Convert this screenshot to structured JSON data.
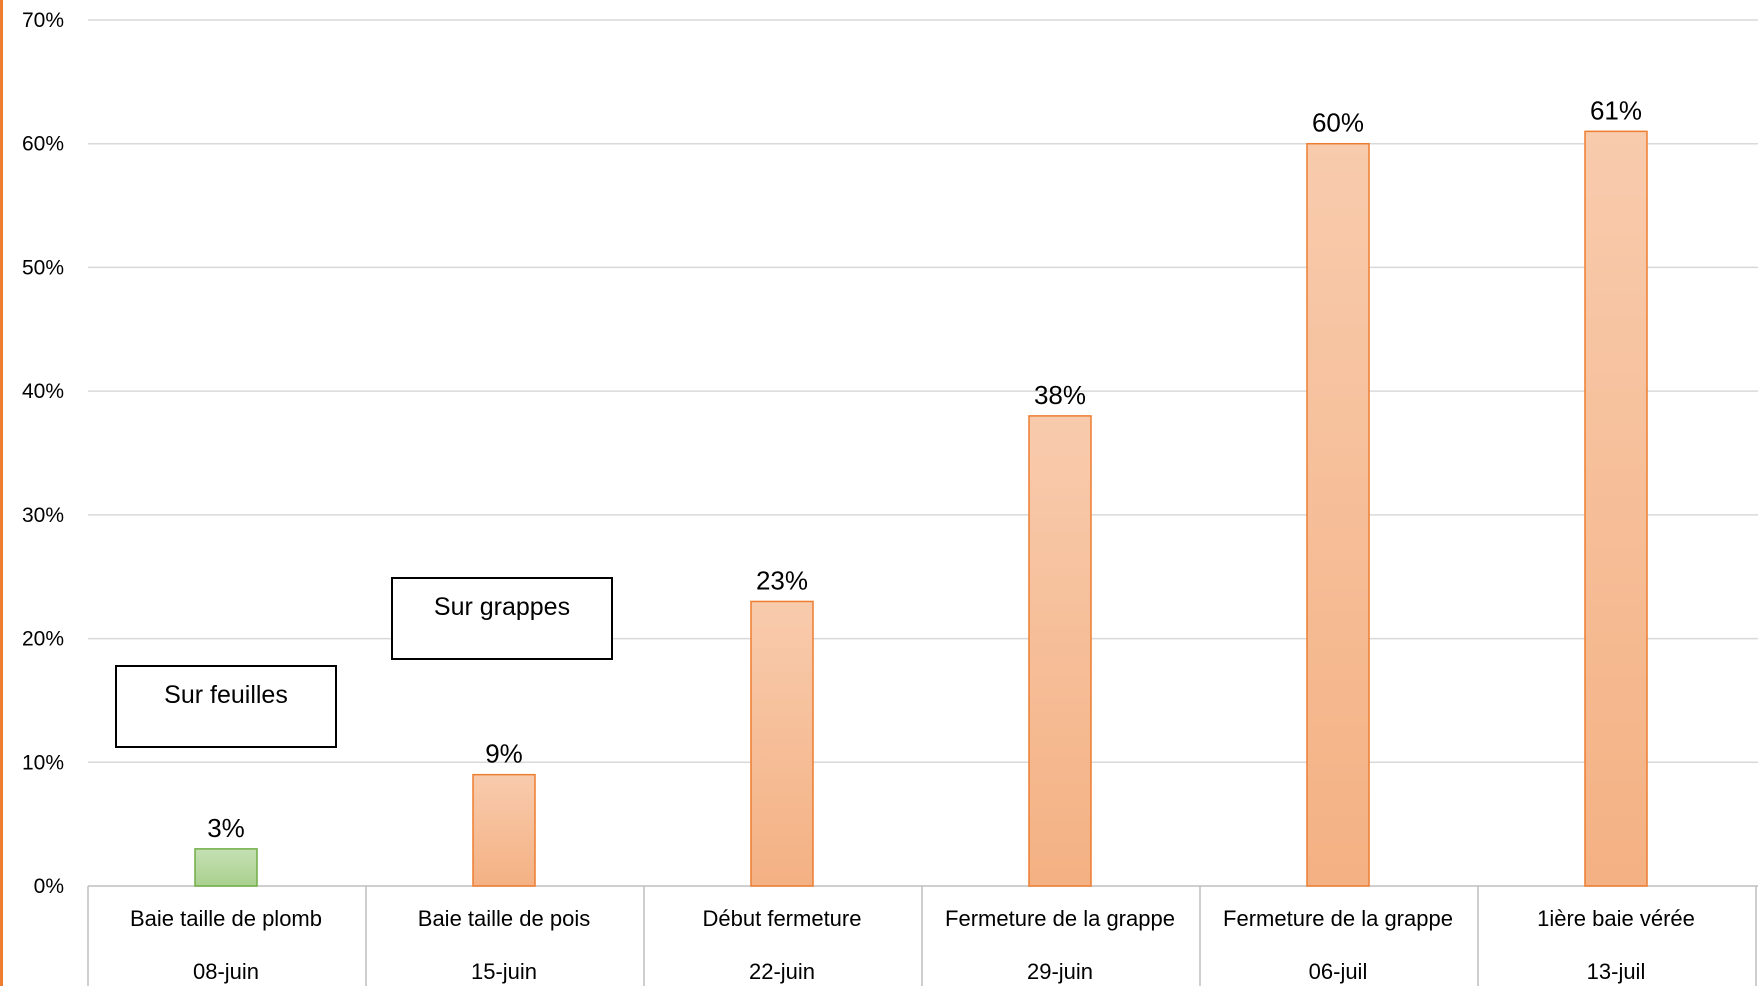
{
  "chart_data": {
    "type": "bar",
    "categories": [
      [
        "Baie taille de plomb",
        "08-juin"
      ],
      [
        "Baie taille de pois",
        "15-juin"
      ],
      [
        "Début fermeture",
        "22-juin"
      ],
      [
        "Fermeture de la grappe",
        "29-juin"
      ],
      [
        "Fermeture de la grappe",
        "06-juil"
      ],
      [
        "1ière baie vérée",
        "13-juil"
      ]
    ],
    "values": [
      3,
      9,
      23,
      38,
      60,
      61
    ],
    "data_labels": [
      "3%",
      "9%",
      "23%",
      "38%",
      "60%",
      "61%"
    ],
    "bar_colors": [
      "#A9D18E",
      "#F4B183",
      "#F4B183",
      "#F4B183",
      "#F4B183",
      "#F4B183"
    ],
    "bar_gradient_top": [
      "#C5E0B4",
      "#F8CBAD",
      "#F8CBAD",
      "#F8CBAD",
      "#F8CBAD",
      "#F8CBAD"
    ],
    "bar_edge_colors": [
      "#70AD47",
      "#ED7D31",
      "#ED7D31",
      "#ED7D31",
      "#ED7D31",
      "#ED7D31"
    ],
    "ylim": [
      0,
      70
    ],
    "yticks": [
      "0%",
      "10%",
      "20%",
      "30%",
      "40%",
      "50%",
      "60%",
      "70%"
    ],
    "grid": true,
    "title": "",
    "xlabel": "",
    "ylabel": "",
    "annotations": [
      {
        "text": "Sur feuilles"
      },
      {
        "text": "Sur grappes"
      }
    ]
  }
}
